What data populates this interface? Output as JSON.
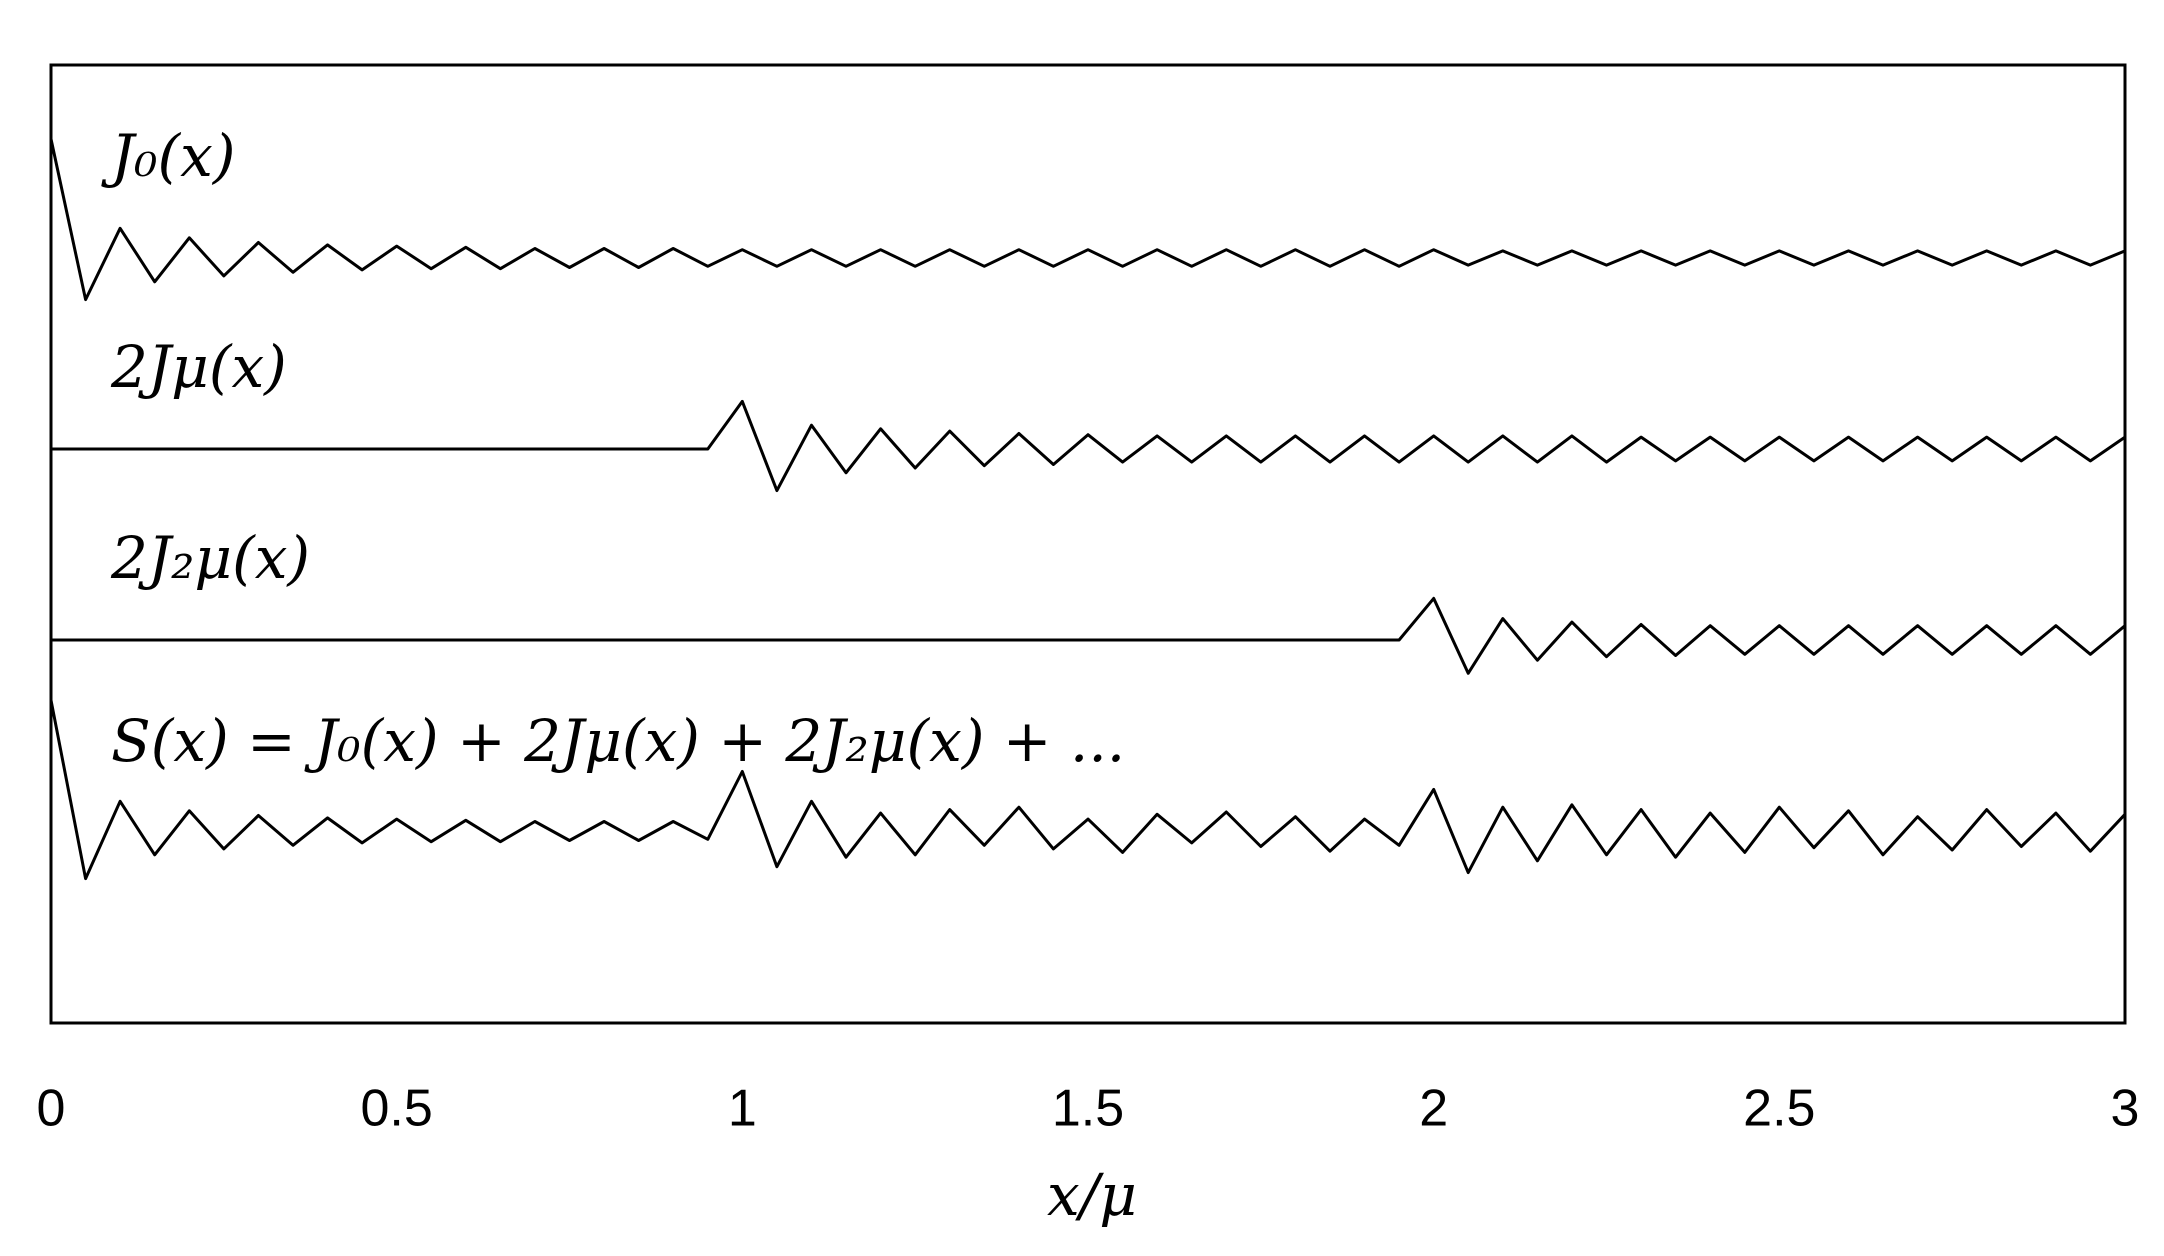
{
  "chart_data": {
    "type": "line",
    "x_label": "x/μ",
    "x": [
      0,
      0.05,
      0.1,
      0.15,
      0.2,
      0.25,
      0.3,
      0.35,
      0.4,
      0.45,
      0.5,
      0.55,
      0.6,
      0.65,
      0.7,
      0.75,
      0.8,
      0.85,
      0.9,
      0.95,
      1,
      1.05,
      1.1,
      1.15,
      1.2,
      1.25,
      1.3,
      1.35,
      1.4,
      1.45,
      1.5,
      1.55,
      1.6,
      1.65,
      1.7,
      1.75,
      1.8,
      1.85,
      1.9,
      1.95,
      2,
      2.05,
      2.1,
      2.15,
      2.2,
      2.25,
      2.3,
      2.35,
      2.4,
      2.45,
      2.5,
      2.55,
      2.6,
      2.65,
      2.7,
      2.75,
      2.8,
      2.85,
      2.9,
      2.95,
      3
    ],
    "xlim": [
      0,
      3
    ],
    "xticks": [
      0,
      0.5,
      1,
      1.5,
      2,
      2.5,
      3
    ],
    "series": [
      {
        "name": "J₀(x)",
        "color": "#000000",
        "values": [
          1,
          -0.35,
          0.25,
          -0.2,
          0.17,
          -0.15,
          0.13,
          -0.12,
          0.11,
          -0.1,
          0.1,
          -0.09,
          0.09,
          -0.09,
          0.08,
          -0.08,
          0.08,
          -0.08,
          0.08,
          -0.07,
          0.07,
          -0.07,
          0.07,
          -0.07,
          0.07,
          -0.07,
          0.07,
          -0.07,
          0.07,
          -0.07,
          0.07,
          -0.07,
          0.07,
          -0.07,
          0.07,
          -0.07,
          0.07,
          -0.07,
          0.07,
          -0.07,
          0.07,
          -0.06,
          0.06,
          -0.06,
          0.06,
          -0.06,
          0.06,
          -0.06,
          0.06,
          -0.06,
          0.06,
          -0.06,
          0.06,
          -0.06,
          0.06,
          -0.06,
          0.06,
          -0.06,
          0.06,
          -0.06,
          0.06
        ]
      },
      {
        "name": "2Jμ(x)",
        "color": "#000000",
        "values": [
          0,
          0,
          0,
          0,
          0,
          0,
          0,
          0,
          0,
          0,
          0,
          0,
          0,
          0,
          0,
          0,
          0,
          0,
          0,
          0,
          0.4,
          -0.35,
          0.2,
          -0.2,
          0.17,
          -0.16,
          0.15,
          -0.14,
          0.13,
          -0.13,
          0.12,
          -0.11,
          0.11,
          -0.11,
          0.11,
          -0.11,
          0.11,
          -0.11,
          0.11,
          -0.11,
          0.11,
          -0.11,
          0.11,
          -0.11,
          0.11,
          -0.11,
          0.1,
          -0.1,
          0.1,
          -0.1,
          0.1,
          -0.1,
          0.1,
          -0.1,
          0.1,
          -0.1,
          0.1,
          -0.1,
          0.1,
          -0.1,
          0.1
        ]
      },
      {
        "name": "2J₂μ(x)",
        "color": "#000000",
        "values": [
          0,
          0,
          0,
          0,
          0,
          0,
          0,
          0,
          0,
          0,
          0,
          0,
          0,
          0,
          0,
          0,
          0,
          0,
          0,
          0,
          0,
          0,
          0,
          0,
          0,
          0,
          0,
          0,
          0,
          0,
          0,
          0,
          0,
          0,
          0,
          0,
          0,
          0,
          0,
          0,
          0.35,
          -0.28,
          0.18,
          -0.17,
          0.15,
          -0.14,
          0.13,
          -0.13,
          0.12,
          -0.12,
          0.12,
          -0.12,
          0.12,
          -0.12,
          0.12,
          -0.12,
          0.12,
          -0.12,
          0.12,
          -0.12,
          0.12
        ]
      },
      {
        "name": "S(x) = J₀(x) + 2Jμ(x) + 2J₂μ(x) + ...",
        "color": "#000000",
        "values": [
          1.1,
          -0.4,
          0.25,
          -0.2,
          0.17,
          -0.15,
          0.13,
          -0.12,
          0.11,
          -0.1,
          0.1,
          -0.09,
          0.09,
          -0.09,
          0.08,
          -0.08,
          0.08,
          -0.08,
          0.08,
          -0.07,
          0.5,
          -0.3,
          0.25,
          -0.22,
          0.15,
          -0.2,
          0.18,
          -0.12,
          0.2,
          -0.15,
          0.1,
          -0.18,
          0.14,
          -0.1,
          0.16,
          -0.13,
          0.12,
          -0.17,
          0.1,
          -0.12,
          0.35,
          -0.35,
          0.2,
          -0.25,
          0.22,
          -0.2,
          0.18,
          -0.22,
          0.15,
          -0.18,
          0.2,
          -0.14,
          0.17,
          -0.2,
          0.12,
          -0.16,
          0.18,
          -0.13,
          0.15,
          -0.17,
          0.14
        ]
      }
    ]
  }
}
